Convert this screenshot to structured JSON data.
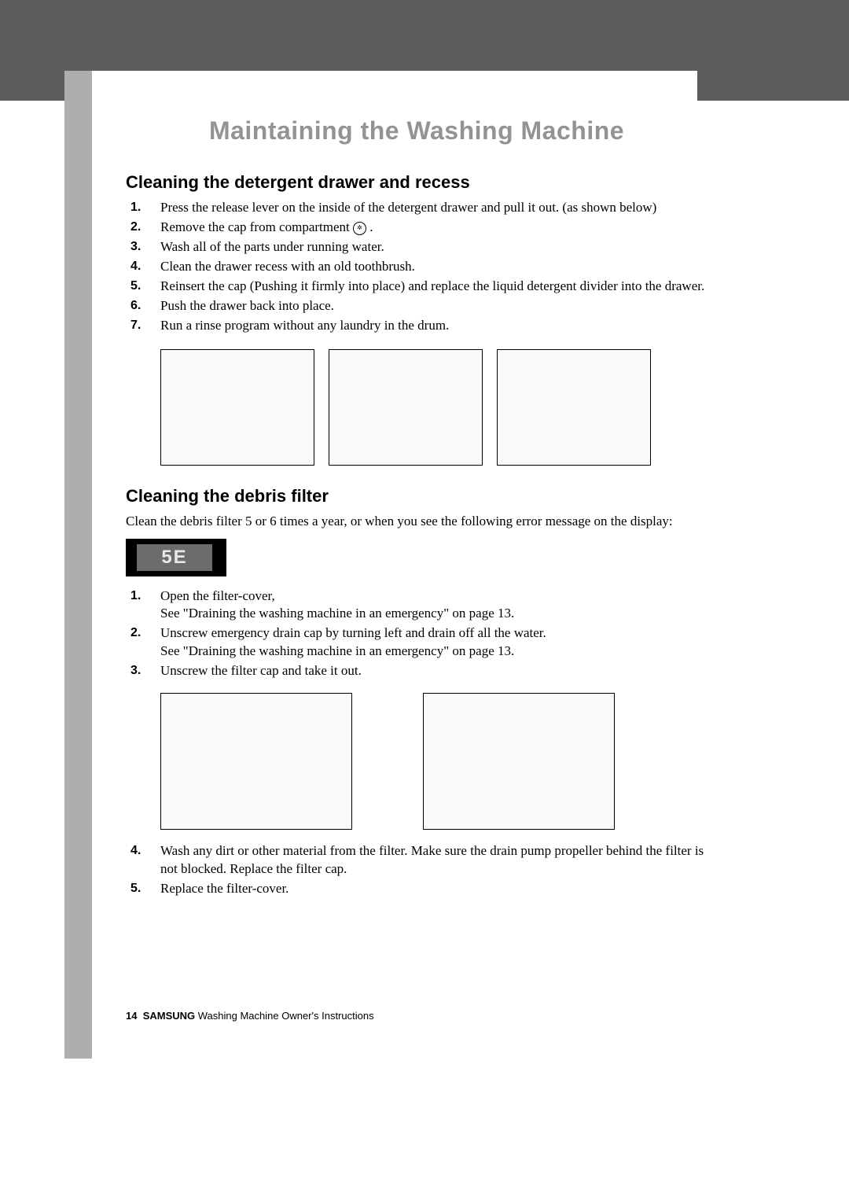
{
  "title": "Maintaining the Washing Machine",
  "section1": {
    "heading": "Cleaning the detergent drawer and recess",
    "steps": [
      "Press the release lever on the inside of the detergent drawer and pull it out. (as shown below)",
      "Remove the cap from compartment ",
      "Wash all of the parts under running water.",
      "Clean the drawer recess with an old toothbrush.",
      "Reinsert the cap (Pushing it firmly into place) and replace the liquid detergent divider into the drawer.",
      "Push the drawer back into place.",
      "Run a rinse program without any laundry in the drum."
    ],
    "compartment_symbol": "✲"
  },
  "section2": {
    "heading": "Cleaning the debris filter",
    "intro": "Clean the debris filter 5 or 6 times a year, or when you see the following error message on the display:",
    "error_code": "5E",
    "steps_a": [
      {
        "t1": "Open the filter-cover,",
        "t2": "See \"Draining the washing machine in an emergency\" on page 13."
      },
      {
        "t1": "Unscrew emergency drain cap by turning left and drain off all the water.",
        "t2": "See \"Draining the washing machine in an emergency\" on page 13."
      },
      {
        "t1": "Unscrew the filter cap and take it out.",
        "t2": ""
      }
    ],
    "steps_b": [
      "Wash any dirt or other material from the filter.  Make sure the drain pump propeller behind the filter is not blocked. Replace the filter cap.",
      "Replace the filter-cover."
    ]
  },
  "footer": {
    "page": "14",
    "brand": "SAMSUNG",
    "tail": " Washing Machine Owner's Instructions"
  },
  "nums": [
    "1.",
    "2.",
    "3.",
    "4.",
    "5.",
    "6.",
    "7."
  ]
}
